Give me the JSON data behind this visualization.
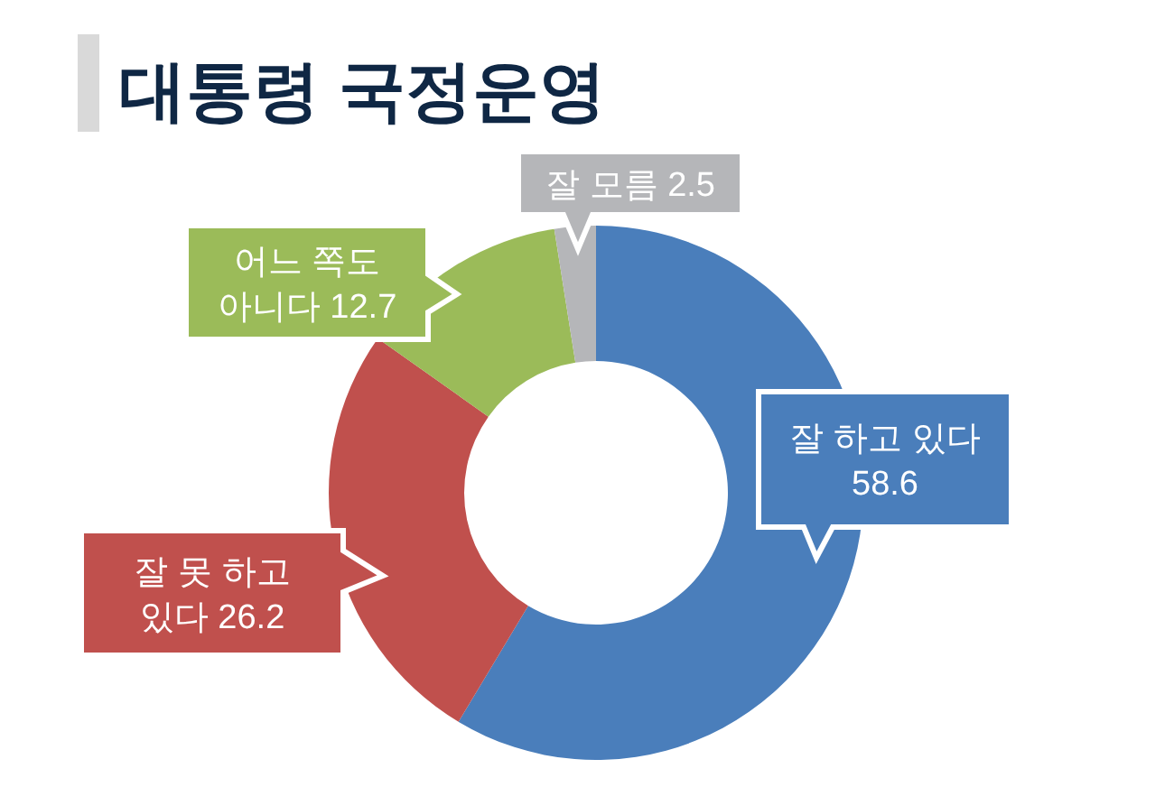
{
  "chart_data": {
    "type": "donut",
    "title": "대통령 국정운영",
    "categories": [
      "잘 하고 있다",
      "잘 못 하고 있다",
      "어느 쪽도 아니다",
      "잘 모름"
    ],
    "values": [
      58.6,
      26.2,
      12.7,
      2.5
    ],
    "colors": [
      "#4a7ebb",
      "#c0504d",
      "#9bbb59",
      "#b5b6b9"
    ],
    "data_labels": true
  }
}
